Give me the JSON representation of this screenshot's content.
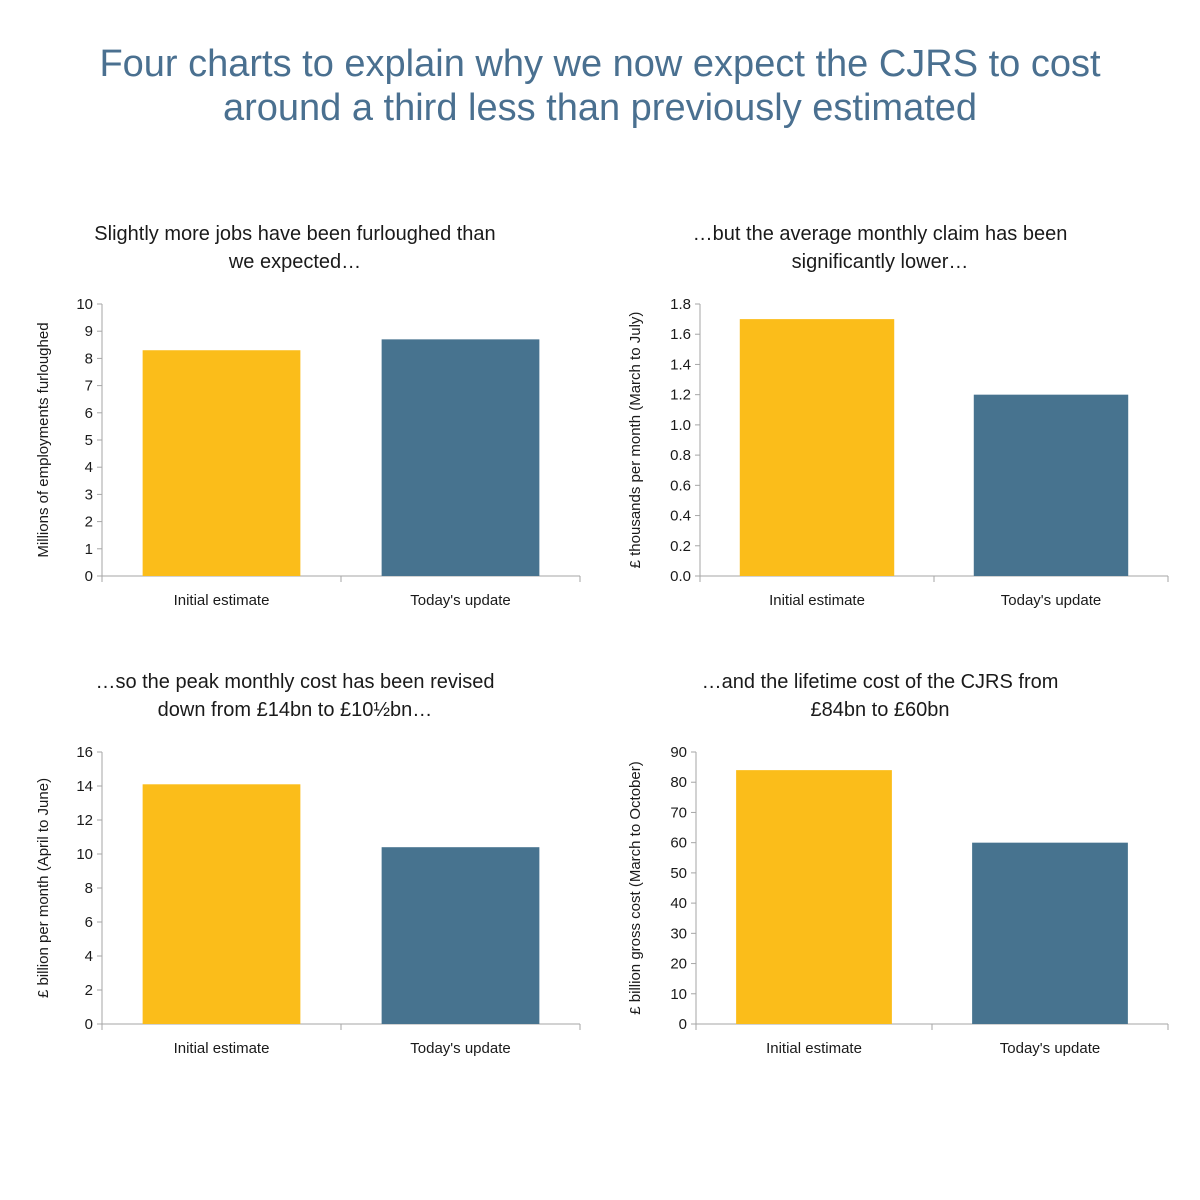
{
  "page": {
    "title_line1": "Four charts to explain why we now expect the CJRS to cost",
    "title_line2": "around a third less than previously estimated"
  },
  "colors": {
    "title": "#4a7090",
    "initial": "#fbbd1a",
    "update": "#47738f",
    "axis": "#a6a6a6"
  },
  "chart_data": [
    {
      "type": "bar",
      "title_line1": "Slightly more jobs have been furloughed than",
      "title_line2": "we expected…",
      "categories": [
        "Initial estimate",
        "Today's update"
      ],
      "values": [
        8.3,
        8.7
      ],
      "ylabel": "Millions of employments furloughed",
      "ylim": [
        0,
        10
      ],
      "yticks": [
        "0",
        "1",
        "2",
        "3",
        "4",
        "5",
        "6",
        "7",
        "8",
        "9",
        "10"
      ],
      "grid": false
    },
    {
      "type": "bar",
      "title_line1": "…but the average monthly claim has been",
      "title_line2": "significantly lower…",
      "categories": [
        "Initial estimate",
        "Today's update"
      ],
      "values": [
        1.7,
        1.2
      ],
      "ylabel": "£ thousands per month (March to July)",
      "ylim": [
        0,
        1.8
      ],
      "yticks": [
        "0.0",
        "0.2",
        "0.4",
        "0.6",
        "0.8",
        "1.0",
        "1.2",
        "1.4",
        "1.6",
        "1.8"
      ],
      "grid": false
    },
    {
      "type": "bar",
      "title_line1": "…so the peak monthly cost has been revised",
      "title_line2": "down from £14bn to £10½bn…",
      "categories": [
        "Initial estimate",
        "Today's update"
      ],
      "values": [
        14.1,
        10.4
      ],
      "ylabel": "£ billion per month (April to June)",
      "ylim": [
        0,
        16
      ],
      "yticks": [
        "0",
        "2",
        "4",
        "6",
        "8",
        "10",
        "12",
        "14",
        "16"
      ],
      "grid": false
    },
    {
      "type": "bar",
      "title_line1": "…and the lifetime cost of the CJRS from",
      "title_line2": "£84bn to £60bn",
      "categories": [
        "Initial estimate",
        "Today's update"
      ],
      "values": [
        84,
        60
      ],
      "ylabel": "£ billion gross cost (March to October)",
      "ylim": [
        0,
        90
      ],
      "yticks": [
        "0",
        "10",
        "20",
        "30",
        "40",
        "50",
        "60",
        "70",
        "80",
        "90"
      ],
      "grid": false
    }
  ]
}
